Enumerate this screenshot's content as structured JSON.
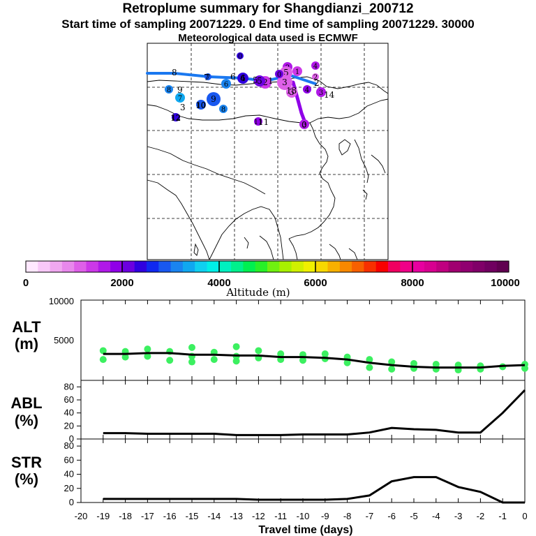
{
  "title": {
    "line1": "Retroplume summary for Shangdianzi_200712",
    "line2": "Start time of sampling 20071229.     0     End time of sampling 20071229. 30000",
    "line3": "Meteorological data used is ECMWF"
  },
  "colorbar": {
    "label": "Altitude (m)",
    "tick_labels": [
      "0",
      "2000",
      "4000",
      "6000",
      "8000",
      "10000"
    ],
    "colors": [
      "#ffe8ff",
      "#f8c8f8",
      "#f0a8f0",
      "#e888ec",
      "#de60e8",
      "#cc38e8",
      "#b018e8",
      "#9000e8",
      "#6c00e0",
      "#3000e0",
      "#1028f0",
      "#1858f0",
      "#1a84f0",
      "#10a8f0",
      "#10d0f0",
      "#00f0e8",
      "#00f0c0",
      "#00f08c",
      "#00f050",
      "#28f028",
      "#70f010",
      "#a8f000",
      "#d0f000",
      "#f0f000",
      "#f8d800",
      "#f8b000",
      "#f88800",
      "#f86000",
      "#f83000",
      "#f80000",
      "#f00060",
      "#f00088",
      "#e800a0",
      "#d80090",
      "#c00080",
      "#a00070",
      "#900070",
      "#800068",
      "#700060",
      "#600050"
    ]
  },
  "chart_data": [
    {
      "type": "scatter",
      "title": "ALT (m)",
      "ylabel": "ALT (m)",
      "xlim": [
        -20,
        0
      ],
      "ylim": [
        0,
        10000
      ],
      "ytick_labels": [
        "5000",
        "10000"
      ],
      "x": [
        -19,
        -18,
        -17,
        -16,
        -15,
        -14,
        -13,
        -12,
        -11,
        -10,
        -9,
        -8,
        -7,
        -6,
        -5,
        -4,
        -3,
        -2,
        -1,
        0
      ],
      "median_line": [
        3300,
        3300,
        3400,
        3400,
        3200,
        3200,
        3100,
        3100,
        2900,
        2900,
        2800,
        2600,
        2200,
        1900,
        1700,
        1600,
        1600,
        1600,
        1800,
        1900
      ],
      "points": [
        {
          "x": -19,
          "y": 3700
        },
        {
          "x": -19,
          "y": 2600
        },
        {
          "x": -18,
          "y": 3600
        },
        {
          "x": -18,
          "y": 2900
        },
        {
          "x": -17,
          "y": 3900
        },
        {
          "x": -17,
          "y": 3000
        },
        {
          "x": -16,
          "y": 3600
        },
        {
          "x": -16,
          "y": 2500
        },
        {
          "x": -15,
          "y": 4100
        },
        {
          "x": -15,
          "y": 3000
        },
        {
          "x": -15,
          "y": 2300
        },
        {
          "x": -14,
          "y": 3500
        },
        {
          "x": -14,
          "y": 2600
        },
        {
          "x": -13,
          "y": 4200
        },
        {
          "x": -13,
          "y": 3000
        },
        {
          "x": -13,
          "y": 2400
        },
        {
          "x": -12,
          "y": 3700
        },
        {
          "x": -12,
          "y": 2800
        },
        {
          "x": -11,
          "y": 3300
        },
        {
          "x": -11,
          "y": 2600
        },
        {
          "x": -10,
          "y": 3200
        },
        {
          "x": -10,
          "y": 2500
        },
        {
          "x": -9,
          "y": 3300
        },
        {
          "x": -9,
          "y": 2700
        },
        {
          "x": -8,
          "y": 2900
        },
        {
          "x": -8,
          "y": 2200
        },
        {
          "x": -7,
          "y": 2600
        },
        {
          "x": -7,
          "y": 1600
        },
        {
          "x": -6,
          "y": 2300
        },
        {
          "x": -6,
          "y": 1400
        },
        {
          "x": -5,
          "y": 2100
        },
        {
          "x": -5,
          "y": 1500
        },
        {
          "x": -4,
          "y": 2000
        },
        {
          "x": -4,
          "y": 1400
        },
        {
          "x": -3,
          "y": 1900
        },
        {
          "x": -3,
          "y": 1300
        },
        {
          "x": -2,
          "y": 1800
        },
        {
          "x": -2,
          "y": 1400
        },
        {
          "x": -1,
          "y": 1700
        },
        {
          "x": 0,
          "y": 2000
        },
        {
          "x": 0,
          "y": 1500
        }
      ]
    },
    {
      "type": "line",
      "title": "ABL (%)",
      "ylabel": "ABL (%)",
      "xlim": [
        -20,
        0
      ],
      "ylim": [
        0,
        90
      ],
      "ytick_labels": [
        "0",
        "20",
        "40",
        "60",
        "80"
      ],
      "x": [
        -19,
        -18,
        -17,
        -16,
        -15,
        -14,
        -13,
        -12,
        -11,
        -10,
        -9,
        -8,
        -7,
        -6,
        -5,
        -4,
        -3,
        -2,
        -1,
        0
      ],
      "values": [
        9,
        9,
        8,
        8,
        8,
        8,
        6,
        6,
        6,
        7,
        7,
        7,
        10,
        17,
        15,
        14,
        10,
        10,
        40,
        75
      ]
    },
    {
      "type": "line",
      "title": "STR (%)",
      "ylabel": "STR (%)",
      "xlim": [
        -20,
        0
      ],
      "ylim": [
        0,
        90
      ],
      "ytick_labels": [
        "0",
        "20",
        "40",
        "60",
        "80"
      ],
      "xlabel": "Travel time (days)",
      "xtick_labels": [
        "-20",
        "-19",
        "-18",
        "-17",
        "-16",
        "-15",
        "-14",
        "-13",
        "-12",
        "-11",
        "-10",
        "-9",
        "-8",
        "-7",
        "-6",
        "-5",
        "-4",
        "-3",
        "-2",
        "-1",
        "0"
      ],
      "x": [
        -19,
        -18,
        -17,
        -16,
        -15,
        -14,
        -13,
        -12,
        -11,
        -10,
        -9,
        -8,
        -7,
        -6,
        -5,
        -4,
        -3,
        -2,
        -1,
        0
      ],
      "values": [
        5,
        5,
        5,
        5,
        5,
        5,
        5,
        4,
        4,
        4,
        4,
        5,
        10,
        30,
        36,
        36,
        22,
        15,
        0,
        0
      ]
    }
  ],
  "map": {
    "track_labels": [
      "0",
      "1",
      "2",
      "3",
      "4",
      "5",
      "6",
      "7",
      "8",
      "9",
      "10",
      "11",
      "12",
      "13",
      "14"
    ],
    "clusters": [
      {
        "label": "0",
        "color": "#3000e0"
      },
      {
        "label": "2",
        "color": "#b018e8"
      },
      {
        "label": "5",
        "color": "#de60e8"
      },
      {
        "label": "1",
        "color": "#cc38e8"
      },
      {
        "label": "4",
        "color": "#b018e8"
      },
      {
        "label": "2",
        "color": "#de60e8"
      },
      {
        "label": "3",
        "color": "#de60e8"
      },
      {
        "label": "2",
        "color": "#cc38e8"
      },
      {
        "label": "3",
        "color": "#de60e8"
      },
      {
        "label": "4",
        "color": "#9000e8"
      },
      {
        "label": "3",
        "color": "#b018e8"
      },
      {
        "label": "0",
        "color": "#6c00e0"
      },
      {
        "label": "5",
        "color": "#6c00e0"
      },
      {
        "label": "6",
        "color": "#3000e0"
      },
      {
        "label": "7",
        "color": "#1858f0"
      },
      {
        "label": "6",
        "color": "#1a84f0"
      },
      {
        "label": "8",
        "color": "#1a84f0"
      },
      {
        "label": "9",
        "color": "#1858f0"
      },
      {
        "label": "10",
        "color": "#1858f0"
      },
      {
        "label": "8",
        "color": "#1a84f0"
      },
      {
        "label": "7",
        "color": "#10a8f0"
      },
      {
        "label": "12",
        "color": "#3000e0"
      },
      {
        "label": "11",
        "color": "#9000e8"
      },
      {
        "label": "3",
        "color": "#b018e8"
      }
    ]
  }
}
